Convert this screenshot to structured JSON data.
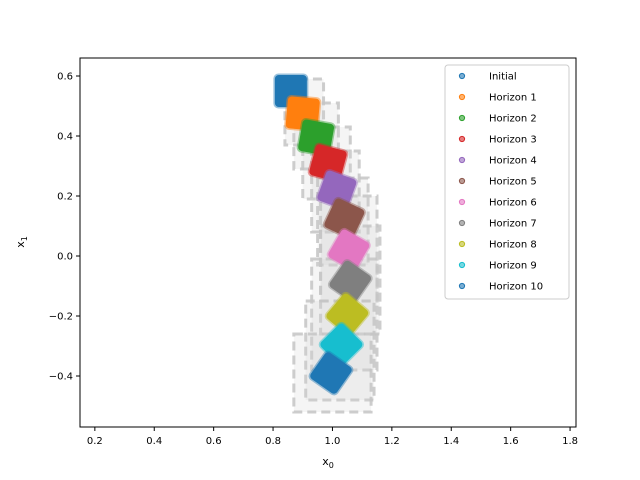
{
  "chart_data": {
    "type": "scatter",
    "title": "",
    "xlabel": "x",
    "xlabel_sub": "0",
    "ylabel": "x",
    "ylabel_sub": "1",
    "xlim": [
      0.15,
      1.82
    ],
    "ylim": [
      -0.57,
      0.66
    ],
    "xticks": [
      0.2,
      0.4,
      0.6,
      0.8,
      1.0,
      1.2,
      1.4,
      1.6,
      1.8
    ],
    "xtick_labels": [
      "0.2",
      "0.4",
      "0.6",
      "0.8",
      "1.0",
      "1.2",
      "1.4",
      "1.6",
      "1.8"
    ],
    "yticks": [
      -0.4,
      -0.2,
      0.0,
      0.2,
      0.4,
      0.6
    ],
    "ytick_labels": [
      "−0.4",
      "−0.2",
      "0.0",
      "0.2",
      "0.4",
      "0.6"
    ],
    "grid": false,
    "legend_position": "upper right",
    "series": [
      {
        "name": "Initial",
        "color": "#1f77b4",
        "center": [
          0.86,
          0.55
        ],
        "angle": 0
      },
      {
        "name": "Horizon 1",
        "color": "#ff7f0e",
        "center": [
          0.9,
          0.475
        ],
        "angle": 5
      },
      {
        "name": "Horizon 2",
        "color": "#2ca02c",
        "center": [
          0.945,
          0.395
        ],
        "angle": 10
      },
      {
        "name": "Horizon 3",
        "color": "#d62728",
        "center": [
          0.985,
          0.31
        ],
        "angle": 15
      },
      {
        "name": "Horizon 4",
        "color": "#9467bd",
        "center": [
          1.015,
          0.22
        ],
        "angle": 20
      },
      {
        "name": "Horizon 5",
        "color": "#8c564b",
        "center": [
          1.04,
          0.125
        ],
        "angle": 25
      },
      {
        "name": "Horizon 6",
        "color": "#e377c2",
        "center": [
          1.055,
          0.02
        ],
        "angle": 30
      },
      {
        "name": "Horizon 7",
        "color": "#7f7f7f",
        "center": [
          1.06,
          -0.085
        ],
        "angle": 35
      },
      {
        "name": "Horizon 8",
        "color": "#bcbd22",
        "center": [
          1.05,
          -0.195
        ],
        "angle": 40
      },
      {
        "name": "Horizon 9",
        "color": "#17becf",
        "center": [
          1.03,
          -0.295
        ],
        "angle": 45
      },
      {
        "name": "Horizon 10",
        "color": "#1f77b4",
        "center": [
          0.995,
          -0.39
        ],
        "angle": 35
      }
    ],
    "reachable_boxes": [
      {
        "x": [
          0.84,
          0.97
        ],
        "y": [
          0.37,
          0.59
        ]
      },
      {
        "x": [
          0.87,
          1.02
        ],
        "y": [
          0.29,
          0.51
        ]
      },
      {
        "x": [
          0.9,
          1.06
        ],
        "y": [
          0.19,
          0.43
        ]
      },
      {
        "x": [
          0.93,
          1.09
        ],
        "y": [
          0.08,
          0.35
        ]
      },
      {
        "x": [
          0.95,
          1.12
        ],
        "y": [
          -0.03,
          0.26
        ]
      },
      {
        "x": [
          0.96,
          1.15
        ],
        "y": [
          -0.15,
          0.2
        ]
      },
      {
        "x": [
          0.96,
          1.16
        ],
        "y": [
          -0.26,
          0.1
        ]
      },
      {
        "x": [
          0.93,
          1.15
        ],
        "y": [
          -0.38,
          -0.01
        ]
      },
      {
        "x": [
          0.91,
          1.14
        ],
        "y": [
          -0.48,
          -0.15
        ]
      },
      {
        "x": [
          0.87,
          1.13
        ],
        "y": [
          -0.52,
          -0.26
        ]
      }
    ]
  }
}
